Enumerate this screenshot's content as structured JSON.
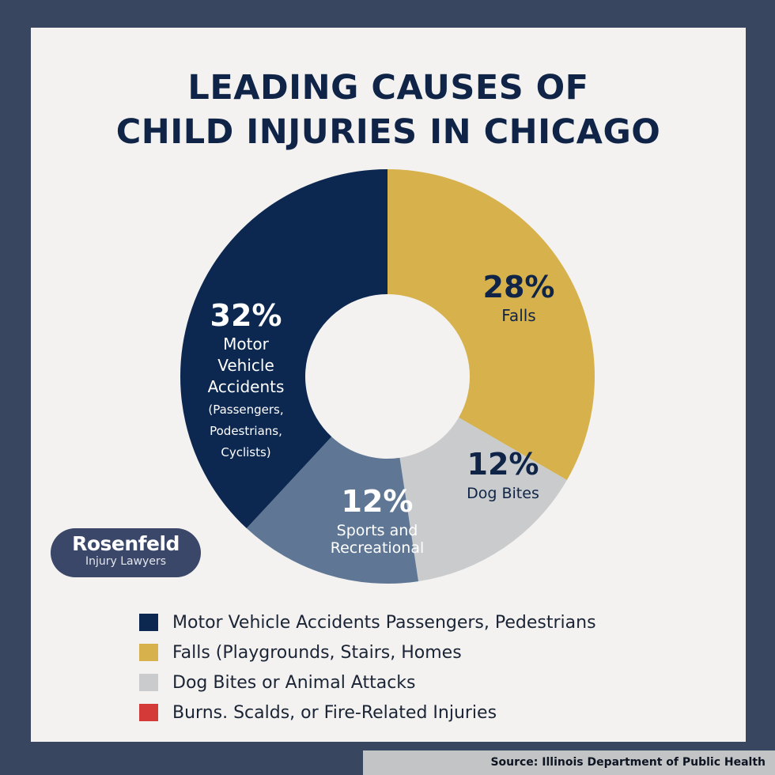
{
  "title_line1": "LEADING CAUSES OF",
  "title_line2": "CHILD INJURIES IN CHICAGO",
  "chart_data": {
    "type": "pie",
    "title": "LEADING CAUSES OF CHILD INJURIES IN CHICAGO",
    "donut": true,
    "slices": [
      {
        "percent_label": "28%",
        "label_lines": [
          "Falls"
        ],
        "value": 28,
        "color": "#d6b14c",
        "text_color": "#0f2447"
      },
      {
        "percent_label": "12%",
        "label_lines": [
          "Dog Bites"
        ],
        "value": 12,
        "color": "#c9cbcd",
        "text_color": "#0f2447"
      },
      {
        "percent_label": "12%",
        "label_lines": [
          "Sports and",
          "Recreational"
        ],
        "value": 12,
        "color": "#5f7795",
        "text_color": "#ffffff"
      },
      {
        "percent_label": "32%",
        "label_lines": [
          "Motor",
          "Vehicle",
          "Accidents",
          "(Passengers,",
          "Podestrians,",
          "Cyclists)"
        ],
        "value": 32,
        "color": "#0c2850",
        "text_color": "#ffffff"
      }
    ]
  },
  "legend": [
    {
      "text": "Motor Vehicle Accidents  Passengers, Pedestrians",
      "color": "#0c2850"
    },
    {
      "text": "Falls (Playgrounds, Stairs, Homes",
      "color": "#d6b14c"
    },
    {
      "text": "Dog Bites or Animal Attacks",
      "color": "#c9cbcd"
    },
    {
      "text": "Burns. Scalds, or Fire-Related Injuries",
      "color": "#d33a38"
    }
  ],
  "logo": {
    "brand": "Rosenfeld",
    "sub": "Injury Lawyers"
  },
  "source": "Source: Illinois Department of Public Health"
}
